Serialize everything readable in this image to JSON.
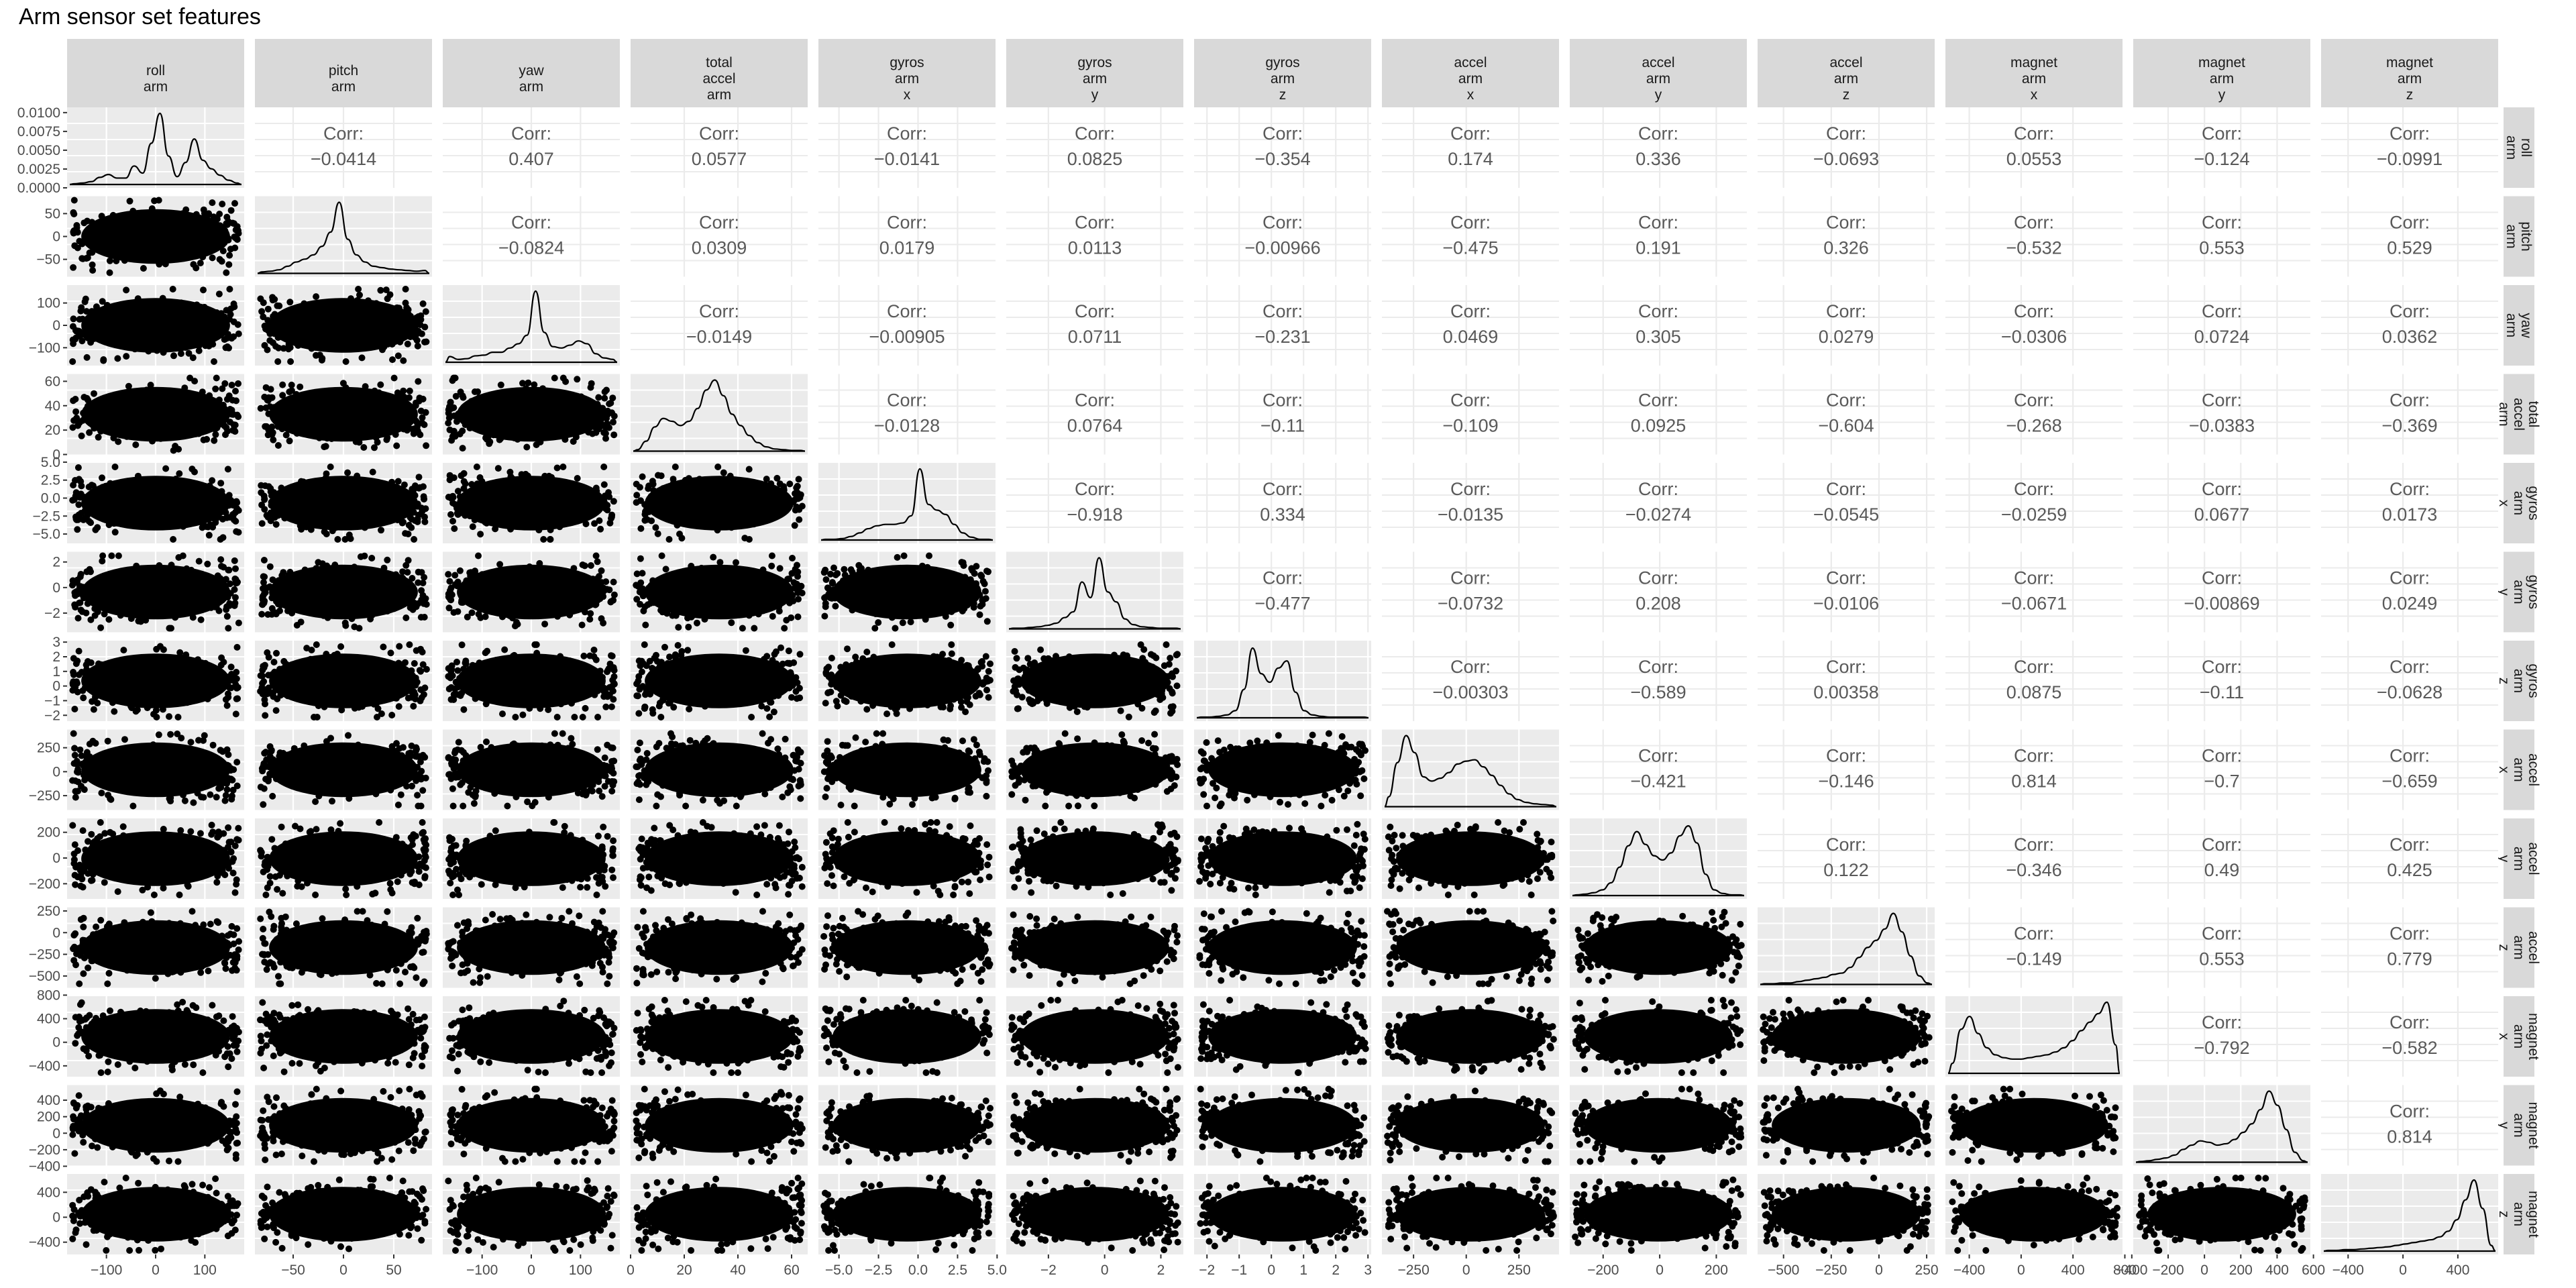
{
  "title": "Arm sensor set features",
  "corr_label": "Corr:",
  "variables": [
    {
      "label": [
        "roll",
        "arm"
      ],
      "ticks": [
        -100,
        0,
        100
      ],
      "range": [
        -180,
        180
      ],
      "hist": [
        1,
        2,
        4,
        10,
        14,
        9,
        9,
        26,
        16,
        58,
        100,
        40,
        11,
        31,
        64,
        34,
        22,
        13,
        6,
        2
      ]
    },
    {
      "label": [
        "pitch",
        "arm"
      ],
      "ticks": [
        -50,
        0,
        50
      ],
      "range": [
        -88,
        88
      ],
      "hist": [
        2,
        3,
        5,
        10,
        16,
        20,
        26,
        38,
        58,
        100,
        48,
        26,
        16,
        10,
        8,
        6,
        5,
        4,
        3,
        4
      ]
    },
    {
      "label": [
        "yaw",
        "arm"
      ],
      "ticks": [
        -100,
        0,
        100
      ],
      "range": [
        -180,
        180
      ],
      "hist": [
        8,
        4,
        5,
        9,
        10,
        14,
        14,
        20,
        26,
        38,
        100,
        42,
        22,
        20,
        24,
        30,
        26,
        12,
        6,
        4
      ]
    },
    {
      "label": [
        "total",
        "accel",
        "arm"
      ],
      "ticks": [
        0,
        20,
        40,
        60
      ],
      "range": [
        0,
        66
      ],
      "hist": [
        2,
        14,
        34,
        46,
        42,
        36,
        42,
        60,
        86,
        100,
        78,
        52,
        36,
        22,
        12,
        6,
        3,
        2,
        1,
        1
      ]
    },
    {
      "label": [
        "gyros",
        "arm",
        "x"
      ],
      "ticks": [
        -5.0,
        -2.5,
        0.0,
        2.5,
        5.0
      ],
      "range": [
        -6.3,
        4.9
      ],
      "hist": [
        1,
        1,
        2,
        5,
        10,
        16,
        20,
        22,
        22,
        24,
        34,
        100,
        50,
        42,
        36,
        22,
        10,
        4,
        1,
        1
      ]
    },
    {
      "label": [
        "gyros",
        "arm",
        "y"
      ],
      "ticks": [
        -2,
        0,
        2
      ],
      "range": [
        -3.5,
        2.8
      ],
      "hist": [
        1,
        1,
        2,
        3,
        5,
        8,
        16,
        24,
        66,
        44,
        100,
        52,
        38,
        14,
        6,
        3,
        2,
        1,
        1,
        1
      ]
    },
    {
      "label": [
        "gyros",
        "arm",
        "z"
      ],
      "ticks": [
        -2,
        -1,
        0,
        1,
        2,
        3
      ],
      "range": [
        -2.4,
        3.1
      ],
      "hist": [
        1,
        1,
        2,
        4,
        10,
        40,
        98,
        62,
        50,
        70,
        80,
        36,
        10,
        4,
        2,
        1,
        1,
        1,
        1,
        1
      ]
    },
    {
      "label": [
        "accel",
        "arm",
        "x"
      ],
      "ticks": [
        -250,
        0,
        250
      ],
      "range": [
        -400,
        440
      ],
      "hist": [
        14,
        62,
        100,
        76,
        42,
        36,
        40,
        48,
        60,
        64,
        66,
        56,
        44,
        30,
        18,
        10,
        6,
        4,
        3,
        2
      ]
    },
    {
      "label": [
        "accel",
        "arm",
        "y"
      ],
      "ticks": [
        -200,
        0,
        200
      ],
      "range": [
        -318,
        308
      ],
      "hist": [
        1,
        2,
        4,
        8,
        18,
        40,
        70,
        90,
        72,
        56,
        50,
        60,
        84,
        98,
        74,
        30,
        8,
        3,
        1,
        1
      ]
    },
    {
      "label": [
        "accel",
        "arm",
        "z"
      ],
      "ticks": [
        -500,
        -250,
        0,
        250
      ],
      "range": [
        -636,
        292
      ],
      "hist": [
        1,
        1,
        2,
        2,
        4,
        6,
        8,
        10,
        14,
        16,
        24,
        38,
        52,
        62,
        78,
        100,
        74,
        40,
        12,
        2
      ]
    },
    {
      "label": [
        "magnet",
        "arm",
        "x"
      ],
      "ticks": [
        -400,
        0,
        400,
        800
      ],
      "range": [
        -584,
        782
      ],
      "hist": [
        14,
        62,
        80,
        56,
        36,
        26,
        22,
        20,
        20,
        22,
        24,
        26,
        30,
        36,
        46,
        60,
        72,
        84,
        100,
        40
      ]
    },
    {
      "label": [
        "magnet",
        "arm",
        "y"
      ],
      "ticks": [
        -400,
        -200,
        0,
        200,
        400,
        600
      ],
      "range": [
        -392,
        583
      ],
      "hist": [
        1,
        2,
        4,
        6,
        10,
        18,
        24,
        30,
        28,
        24,
        26,
        32,
        42,
        54,
        74,
        100,
        80,
        46,
        14,
        2
      ]
    },
    {
      "label": [
        "magnet",
        "arm",
        "z"
      ],
      "ticks": [
        -400,
        0,
        400
      ],
      "range": [
        -597,
        694
      ],
      "hist": [
        1,
        1,
        2,
        2,
        3,
        4,
        5,
        6,
        8,
        10,
        12,
        14,
        16,
        20,
        28,
        44,
        72,
        100,
        60,
        8
      ]
    }
  ],
  "chart_data": {
    "type": "scatter",
    "title": "Arm sensor set features",
    "variables": [
      "roll arm",
      "pitch arm",
      "yaw arm",
      "total accel arm",
      "gyros arm x",
      "gyros arm y",
      "gyros arm z",
      "accel arm x",
      "accel arm y",
      "accel arm z",
      "magnet arm x",
      "magnet arm y",
      "magnet arm z"
    ],
    "correlations": [
      [
        "roll arm",
        "pitch arm",
        -0.0414
      ],
      [
        "roll arm",
        "yaw arm",
        0.407
      ],
      [
        "roll arm",
        "total accel arm",
        0.0577
      ],
      [
        "roll arm",
        "gyros arm x",
        -0.0141
      ],
      [
        "roll arm",
        "gyros arm y",
        0.0825
      ],
      [
        "roll arm",
        "gyros arm z",
        -0.354
      ],
      [
        "roll arm",
        "accel arm x",
        0.174
      ],
      [
        "roll arm",
        "accel arm y",
        0.336
      ],
      [
        "roll arm",
        "accel arm z",
        -0.0693
      ],
      [
        "roll arm",
        "magnet arm x",
        0.0553
      ],
      [
        "roll arm",
        "magnet arm y",
        -0.124
      ],
      [
        "roll arm",
        "magnet arm z",
        -0.0991
      ],
      [
        "pitch arm",
        "yaw arm",
        -0.0824
      ],
      [
        "pitch arm",
        "total accel arm",
        0.0309
      ],
      [
        "pitch arm",
        "gyros arm x",
        0.0179
      ],
      [
        "pitch arm",
        "gyros arm y",
        0.0113
      ],
      [
        "pitch arm",
        "gyros arm z",
        -0.00966
      ],
      [
        "pitch arm",
        "accel arm x",
        -0.475
      ],
      [
        "pitch arm",
        "accel arm y",
        0.191
      ],
      [
        "pitch arm",
        "accel arm z",
        0.326
      ],
      [
        "pitch arm",
        "magnet arm x",
        -0.532
      ],
      [
        "pitch arm",
        "magnet arm y",
        0.553
      ],
      [
        "pitch arm",
        "magnet arm z",
        0.529
      ],
      [
        "yaw arm",
        "total accel arm",
        -0.0149
      ],
      [
        "yaw arm",
        "gyros arm x",
        -0.00905
      ],
      [
        "yaw arm",
        "gyros arm y",
        0.0711
      ],
      [
        "yaw arm",
        "gyros arm z",
        -0.231
      ],
      [
        "yaw arm",
        "accel arm x",
        0.0469
      ],
      [
        "yaw arm",
        "accel arm y",
        0.305
      ],
      [
        "yaw arm",
        "accel arm z",
        0.0279
      ],
      [
        "yaw arm",
        "magnet arm x",
        -0.0306
      ],
      [
        "yaw arm",
        "magnet arm y",
        0.0724
      ],
      [
        "yaw arm",
        "magnet arm z",
        0.0362
      ],
      [
        "total accel arm",
        "gyros arm x",
        -0.0128
      ],
      [
        "total accel arm",
        "gyros arm y",
        0.0764
      ],
      [
        "total accel arm",
        "gyros arm z",
        -0.11
      ],
      [
        "total accel arm",
        "accel arm x",
        -0.109
      ],
      [
        "total accel arm",
        "accel arm y",
        0.0925
      ],
      [
        "total accel arm",
        "accel arm z",
        -0.604
      ],
      [
        "total accel arm",
        "magnet arm x",
        -0.268
      ],
      [
        "total accel arm",
        "magnet arm y",
        -0.0383
      ],
      [
        "total accel arm",
        "magnet arm z",
        -0.369
      ],
      [
        "gyros arm x",
        "gyros arm y",
        -0.918
      ],
      [
        "gyros arm x",
        "gyros arm z",
        0.334
      ],
      [
        "gyros arm x",
        "accel arm x",
        -0.0135
      ],
      [
        "gyros arm x",
        "accel arm y",
        -0.0274
      ],
      [
        "gyros arm x",
        "accel arm z",
        -0.0545
      ],
      [
        "gyros arm x",
        "magnet arm x",
        -0.0259
      ],
      [
        "gyros arm x",
        "magnet arm y",
        0.0677
      ],
      [
        "gyros arm x",
        "magnet arm z",
        0.0173
      ],
      [
        "gyros arm y",
        "gyros arm z",
        -0.477
      ],
      [
        "gyros arm y",
        "accel arm x",
        -0.0732
      ],
      [
        "gyros arm y",
        "accel arm y",
        0.208
      ],
      [
        "gyros arm y",
        "accel arm z",
        -0.0106
      ],
      [
        "gyros arm y",
        "magnet arm x",
        -0.0671
      ],
      [
        "gyros arm y",
        "magnet arm y",
        -0.00869
      ],
      [
        "gyros arm y",
        "magnet arm z",
        0.0249
      ],
      [
        "gyros arm z",
        "accel arm x",
        -0.00303
      ],
      [
        "gyros arm z",
        "accel arm y",
        -0.589
      ],
      [
        "gyros arm z",
        "accel arm z",
        0.00358
      ],
      [
        "gyros arm z",
        "magnet arm x",
        0.0875
      ],
      [
        "gyros arm z",
        "magnet arm y",
        -0.11
      ],
      [
        "gyros arm z",
        "magnet arm z",
        -0.0628
      ],
      [
        "accel arm x",
        "accel arm y",
        -0.421
      ],
      [
        "accel arm x",
        "accel arm z",
        -0.146
      ],
      [
        "accel arm x",
        "magnet arm x",
        0.814
      ],
      [
        "accel arm x",
        "magnet arm y",
        -0.7
      ],
      [
        "accel arm x",
        "magnet arm z",
        -0.659
      ],
      [
        "accel arm y",
        "accel arm z",
        0.122
      ],
      [
        "accel arm y",
        "magnet arm x",
        -0.346
      ],
      [
        "accel arm y",
        "magnet arm y",
        0.49
      ],
      [
        "accel arm y",
        "magnet arm z",
        0.425
      ],
      [
        "accel arm z",
        "magnet arm x",
        -0.149
      ],
      [
        "accel arm z",
        "magnet arm y",
        0.553
      ],
      [
        "accel arm z",
        "magnet arm z",
        0.779
      ],
      [
        "magnet arm x",
        "magnet arm y",
        -0.792
      ],
      [
        "magnet arm x",
        "magnet arm z",
        -0.582
      ],
      [
        "magnet arm y",
        "magnet arm z",
        0.814
      ]
    ],
    "corr_matrix_upper": [
      [
        "-0.0414",
        "0.407",
        "0.0577",
        "-0.0141",
        "0.0825",
        "-0.354",
        "0.174",
        "0.336",
        "-0.0693",
        "0.0553",
        "-0.124",
        "-0.0991"
      ],
      [
        "-0.0824",
        "0.0309",
        "0.0179",
        "0.0113",
        "-0.00966",
        "-0.475",
        "0.191",
        "0.326",
        "-0.532",
        "0.553",
        "0.529"
      ],
      [
        "-0.0149",
        "-0.00905",
        "0.0711",
        "-0.231",
        "0.0469",
        "0.305",
        "0.0279",
        "-0.0306",
        "0.0724",
        "0.0362"
      ],
      [
        "-0.0128",
        "0.0764",
        "-0.11",
        "-0.109",
        "0.0925",
        "-0.604",
        "-0.268",
        "-0.0383",
        "-0.369"
      ],
      [
        "-0.918",
        "0.334",
        "-0.0135",
        "-0.0274",
        "-0.0545",
        "-0.0259",
        "0.0677",
        "0.0173"
      ],
      [
        "-0.477",
        "-0.0732",
        "0.208",
        "-0.0106",
        "-0.0671",
        "-0.00869",
        "0.0249"
      ],
      [
        "-0.00303",
        "-0.589",
        "0.00358",
        "0.0875",
        "-0.11",
        "-0.0628"
      ],
      [
        "-0.421",
        "-0.146",
        "0.814",
        "-0.7",
        "-0.659"
      ],
      [
        "0.122",
        "-0.346",
        "0.49",
        "0.425"
      ],
      [
        "-0.149",
        "0.553",
        "0.779"
      ],
      [
        "-0.792",
        "-0.582"
      ],
      [
        "0.814"
      ]
    ],
    "density_y_ticks_roll_arm": [
      0.0,
      0.0025,
      0.005,
      0.0075,
      0.01
    ],
    "density_y_range_roll_arm": [
      0,
      0.0107
    ],
    "grid": true
  }
}
